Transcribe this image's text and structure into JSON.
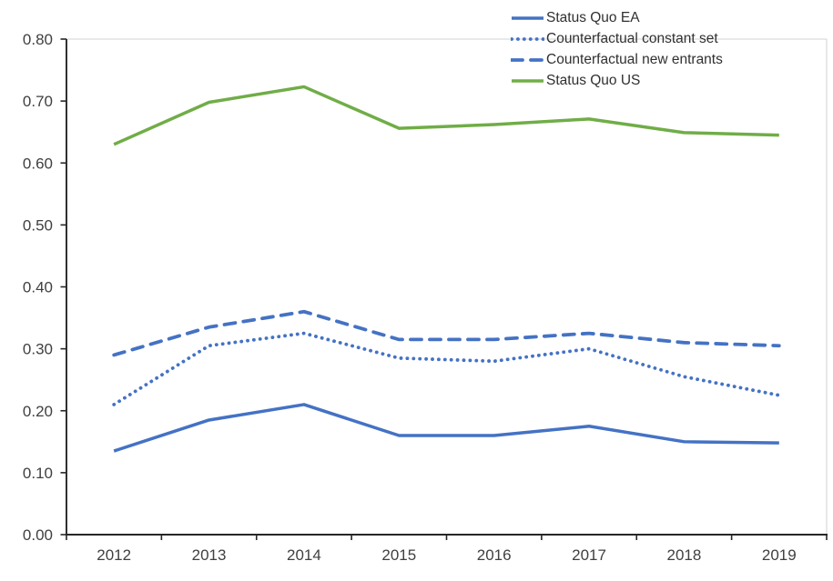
{
  "chart_data": {
    "type": "line",
    "title": "",
    "xlabel": "",
    "ylabel": "",
    "categories": [
      "2012",
      "2013",
      "2014",
      "2015",
      "2016",
      "2017",
      "2018",
      "2019"
    ],
    "series": [
      {
        "name": "Status Quo EA",
        "color": "#4472C4",
        "dash": "solid",
        "values": [
          0.135,
          0.185,
          0.21,
          0.16,
          0.16,
          0.175,
          0.15,
          0.148
        ]
      },
      {
        "name": "Counterfactual constant set",
        "color": "#4472C4",
        "dash": "dotted",
        "values": [
          0.21,
          0.305,
          0.325,
          0.285,
          0.28,
          0.3,
          0.255,
          0.225
        ]
      },
      {
        "name": "Counterfactual new entrants",
        "color": "#4472C4",
        "dash": "dashed",
        "values": [
          0.29,
          0.335,
          0.36,
          0.315,
          0.315,
          0.325,
          0.31,
          0.305
        ]
      },
      {
        "name": "Status Quo US",
        "color": "#70AD47",
        "dash": "solid",
        "values": [
          0.63,
          0.698,
          0.723,
          0.656,
          0.662,
          0.671,
          0.649,
          0.645
        ]
      }
    ],
    "ylim": [
      0,
      0.8
    ],
    "ytick_labels": [
      "0.00",
      "0.10",
      "0.20",
      "0.30",
      "0.40",
      "0.50",
      "0.60",
      "0.70",
      "0.80"
    ],
    "grid": false,
    "legend_position": "top-right",
    "colors": {
      "axis": "#262626",
      "plot_border": "#d9d9d9",
      "tick_label": "#404040",
      "legend_text": "#303030"
    }
  }
}
